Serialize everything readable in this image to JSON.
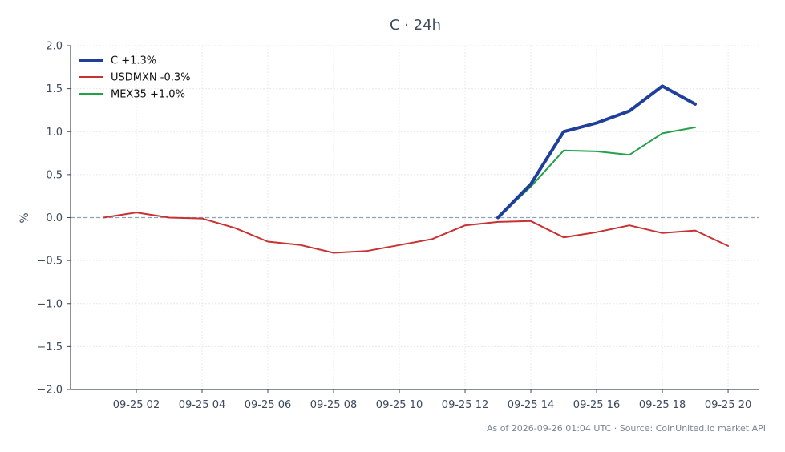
{
  "chart_data": {
    "type": "line",
    "title": "C · 24h",
    "ylabel": "%",
    "ylim": [
      -2.0,
      2.0
    ],
    "y_ticks": [
      "2.0",
      "1.5",
      "1.0",
      "0.5",
      "0.0",
      "−0.5",
      "−1.0",
      "−1.5",
      "−2.0"
    ],
    "y_tick_values": [
      2.0,
      1.5,
      1.0,
      0.5,
      0.0,
      -0.5,
      -1.0,
      -1.5,
      -2.0
    ],
    "x_range": [
      0,
      20.95
    ],
    "x_ticks": [
      {
        "x": 2,
        "label": "09-25 02"
      },
      {
        "x": 4,
        "label": "09-25 04"
      },
      {
        "x": 6,
        "label": "09-25 06"
      },
      {
        "x": 8,
        "label": "09-25 08"
      },
      {
        "x": 10,
        "label": "09-25 10"
      },
      {
        "x": 12,
        "label": "09-25 12"
      },
      {
        "x": 14,
        "label": "09-25 14"
      },
      {
        "x": 16,
        "label": "09-25 16"
      },
      {
        "x": 18,
        "label": "09-25 18"
      },
      {
        "x": 20,
        "label": "09-25 20"
      }
    ],
    "grid": true,
    "zero_line": true,
    "legend_position": "top-left",
    "series": [
      {
        "name": "C +1.3%",
        "color": "#1f3f9a",
        "width": 4,
        "x": [
          13,
          14,
          15,
          16,
          17,
          18,
          19
        ],
        "y": [
          0.0,
          0.39,
          1.0,
          1.1,
          1.24,
          1.53,
          1.32
        ]
      },
      {
        "name": "USDMXN -0.3%",
        "color": "#c83232",
        "width": 2,
        "x": [
          1,
          2,
          3,
          4,
          5,
          6,
          7,
          8,
          9,
          10,
          11,
          12,
          13,
          14,
          15,
          16,
          17,
          18,
          19,
          20
        ],
        "y": [
          0.0,
          0.06,
          0.0,
          -0.01,
          -0.12,
          -0.28,
          -0.32,
          -0.41,
          -0.39,
          -0.32,
          -0.25,
          -0.09,
          -0.05,
          -0.04,
          -0.23,
          -0.17,
          -0.09,
          -0.18,
          -0.15,
          -0.33
        ]
      },
      {
        "name": "MEX35 +1.0%",
        "color": "#23a04a",
        "width": 2,
        "x": [
          13,
          14,
          15,
          16,
          17,
          18,
          19
        ],
        "y": [
          0.0,
          0.36,
          0.78,
          0.77,
          0.73,
          0.98,
          1.05
        ]
      }
    ],
    "footer": "As of 2026-09-26 01:04 UTC · Source: CoinUnited.io market API"
  }
}
